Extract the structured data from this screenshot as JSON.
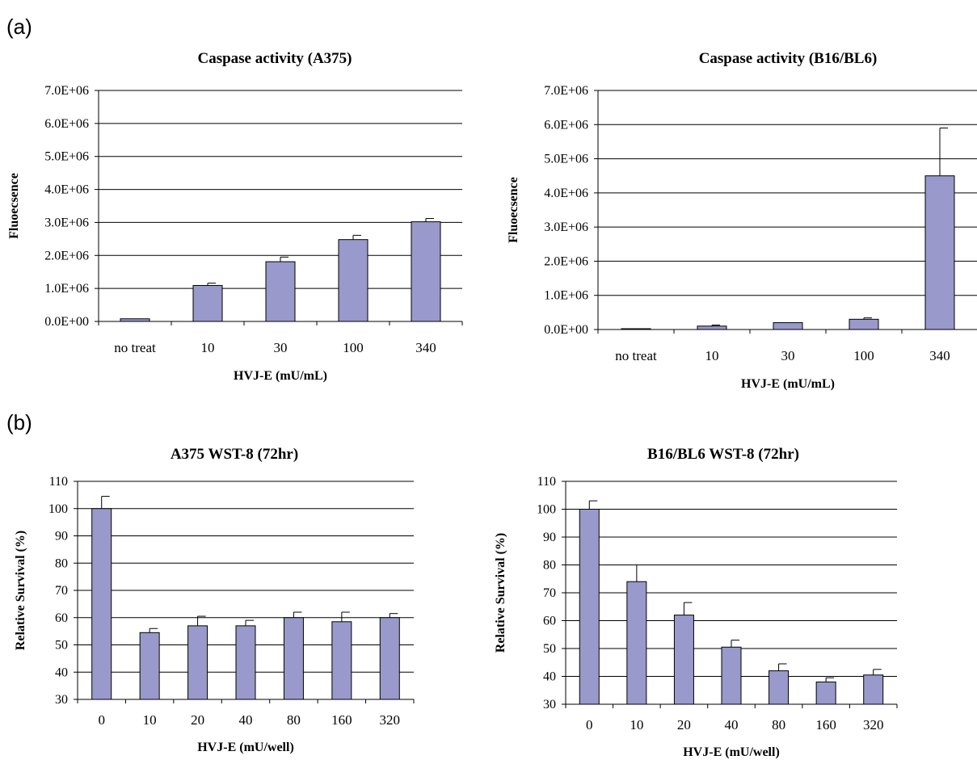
{
  "panel_labels": [
    "(a)",
    "(b)"
  ],
  "colors": {
    "bar_fill": "#9999cc",
    "bar_stroke": "#000000",
    "grid": "#000000",
    "text": "#000000"
  },
  "chart_data": [
    {
      "type": "bar",
      "title": "Caspase activity (A375)",
      "xlabel": "HVJ-E (mU/mL)",
      "ylabel": "Fluoecsence",
      "categories": [
        "no treat",
        "10",
        "30",
        "100",
        "340"
      ],
      "values": [
        80000,
        1090000,
        1810000,
        2480000,
        3020000
      ],
      "errors": [
        0,
        70000,
        140000,
        130000,
        100000
      ],
      "ylim": [
        0,
        7000000
      ],
      "yticks": [
        0,
        1000000,
        2000000,
        3000000,
        4000000,
        5000000,
        6000000,
        7000000
      ],
      "ytick_labels": [
        "0.0E+00",
        "1.0E+06",
        "2.0E+06",
        "3.0E+06",
        "4.0E+06",
        "5.0E+06",
        "6.0E+06",
        "7.0E+06"
      ],
      "grid": true,
      "legend": "none"
    },
    {
      "type": "bar",
      "title": "Caspase activity (B16/BL6)",
      "xlabel": "HVJ-E (mU/mL)",
      "ylabel": "Fluoecsence",
      "categories": [
        "no treat",
        "10",
        "30",
        "100",
        "340"
      ],
      "values": [
        5000,
        100000,
        200000,
        300000,
        4500000
      ],
      "errors": [
        0,
        30000,
        0,
        40000,
        1400000
      ],
      "ylim": [
        0,
        7000000
      ],
      "yticks": [
        0,
        1000000,
        2000000,
        3000000,
        4000000,
        5000000,
        6000000,
        7000000
      ],
      "ytick_labels": [
        "0.0E+00",
        "1.0E+06",
        "2.0E+06",
        "3.0E+06",
        "4.0E+06",
        "5.0E+06",
        "6.0E+06",
        "7.0E+06"
      ],
      "grid": true,
      "legend": "none"
    },
    {
      "type": "bar",
      "title": "A375 WST-8 (72hr)",
      "xlabel": "HVJ-E (mU/well)",
      "ylabel": "Relative Survival (%)",
      "categories": [
        "0",
        "10",
        "20",
        "40",
        "80",
        "160",
        "320"
      ],
      "values": [
        100,
        54.5,
        57,
        57,
        60,
        58.5,
        60
      ],
      "errors": [
        4.5,
        1.5,
        3.5,
        2,
        2,
        3.5,
        1.5
      ],
      "ylim": [
        30,
        110
      ],
      "yticks": [
        30,
        40,
        50,
        60,
        70,
        80,
        90,
        100,
        110
      ],
      "ytick_labels": [
        "30",
        "40",
        "50",
        "60",
        "70",
        "80",
        "90",
        "100",
        "110"
      ],
      "grid": true,
      "legend": "none"
    },
    {
      "type": "bar",
      "title": "B16/BL6 WST-8 (72hr)",
      "xlabel": "HVJ-E (mU/well)",
      "ylabel": "Relative Survival (%)",
      "categories": [
        "0",
        "10",
        "20",
        "40",
        "80",
        "160",
        "320"
      ],
      "values": [
        100,
        74,
        62,
        50.5,
        42,
        38,
        40.5
      ],
      "errors": [
        3,
        6,
        4.5,
        2.5,
        2.5,
        1.5,
        2
      ],
      "ylim": [
        30,
        110
      ],
      "yticks": [
        30,
        40,
        50,
        60,
        70,
        80,
        90,
        100,
        110
      ],
      "ytick_labels": [
        "30",
        "40",
        "50",
        "60",
        "70",
        "80",
        "90",
        "100",
        "110"
      ],
      "grid": true,
      "legend": "none"
    }
  ]
}
